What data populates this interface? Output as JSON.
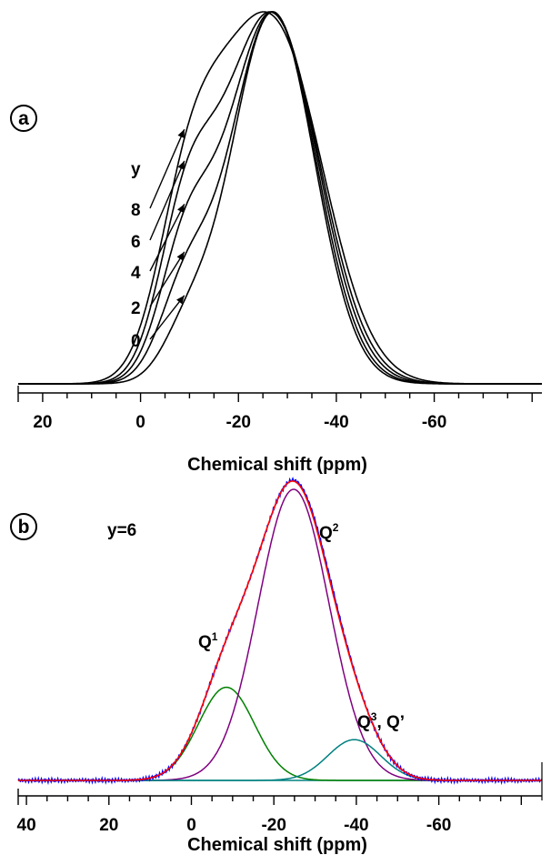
{
  "chart_data": [
    {
      "panel_label": "a",
      "type": "line",
      "xlabel": "Chemical shift (ppm)",
      "ylabel": "",
      "xlim": [
        25,
        -82
      ],
      "x_reversed": true,
      "xticks": [
        20,
        0,
        -20,
        -40,
        -60
      ],
      "grid": false,
      "series_label_title": "y",
      "series_labels": [
        "8",
        "6",
        "4",
        "2",
        "0"
      ],
      "series": [
        {
          "name": "8",
          "center": -27,
          "width": 10.2,
          "shoulder_height": 0.4,
          "shoulder_center": -9,
          "shoulder_width": 6.0,
          "extra_height": 0.16,
          "extra_center": -16,
          "extra_width": 6.0
        },
        {
          "name": "6",
          "center": -27,
          "width": 9.6,
          "shoulder_height": 0.38,
          "shoulder_center": -9,
          "shoulder_width": 5.5,
          "extra_height": 0.08,
          "extra_center": -16,
          "extra_width": 6.0
        },
        {
          "name": "4",
          "center": -27,
          "width": 9.2,
          "shoulder_height": 0.31,
          "shoulder_center": -9,
          "shoulder_width": 5.3,
          "extra_height": 0.03,
          "extra_center": -16,
          "extra_width": 6.0
        },
        {
          "name": "2",
          "center": -27,
          "width": 8.8,
          "shoulder_height": 0.22,
          "shoulder_center": -9,
          "shoulder_width": 5.2,
          "extra_height": 0.0,
          "extra_center": -16,
          "extra_width": 6.0
        },
        {
          "name": "0",
          "center": -27,
          "width": 8.5,
          "shoulder_height": 0.12,
          "shoulder_center": -9.5,
          "shoulder_width": 5.0,
          "extra_height": 0.0,
          "extra_center": -16,
          "extra_width": 6.0
        }
      ]
    },
    {
      "panel_label": "b",
      "type": "line",
      "title": "y=6",
      "xlabel": "Chemical shift (ppm)",
      "ylabel": "",
      "xlim": [
        42,
        -85
      ],
      "x_reversed": true,
      "xticks": [
        40,
        20,
        0,
        -20,
        -40,
        -60
      ],
      "grid": false,
      "annotations": [
        {
          "text": "Q",
          "sup": "1",
          "x_ppm": -4
        },
        {
          "text": "Q",
          "sup": "2",
          "x_ppm": -31
        },
        {
          "text": "Q",
          "sup": "3",
          "rest": ", Q’",
          "x_ppm": -43
        }
      ],
      "series": [
        {
          "name": "Q1",
          "component": "Q1",
          "color": "#008000",
          "center": -8.5,
          "width": 6.8,
          "height": 0.32
        },
        {
          "name": "Q2",
          "component": "Q2",
          "color": "#800080",
          "center": -24.8,
          "width": 8.6,
          "height": 1.0
        },
        {
          "name": "Q3, Q'",
          "component": "Q3",
          "color": "#008080",
          "center": -39.5,
          "width": 6.4,
          "height": 0.14
        },
        {
          "name": "experimental",
          "component": "experimental",
          "color": "#0000ff"
        },
        {
          "name": "fit",
          "component": "sum",
          "color": "#ff0000"
        }
      ]
    }
  ]
}
